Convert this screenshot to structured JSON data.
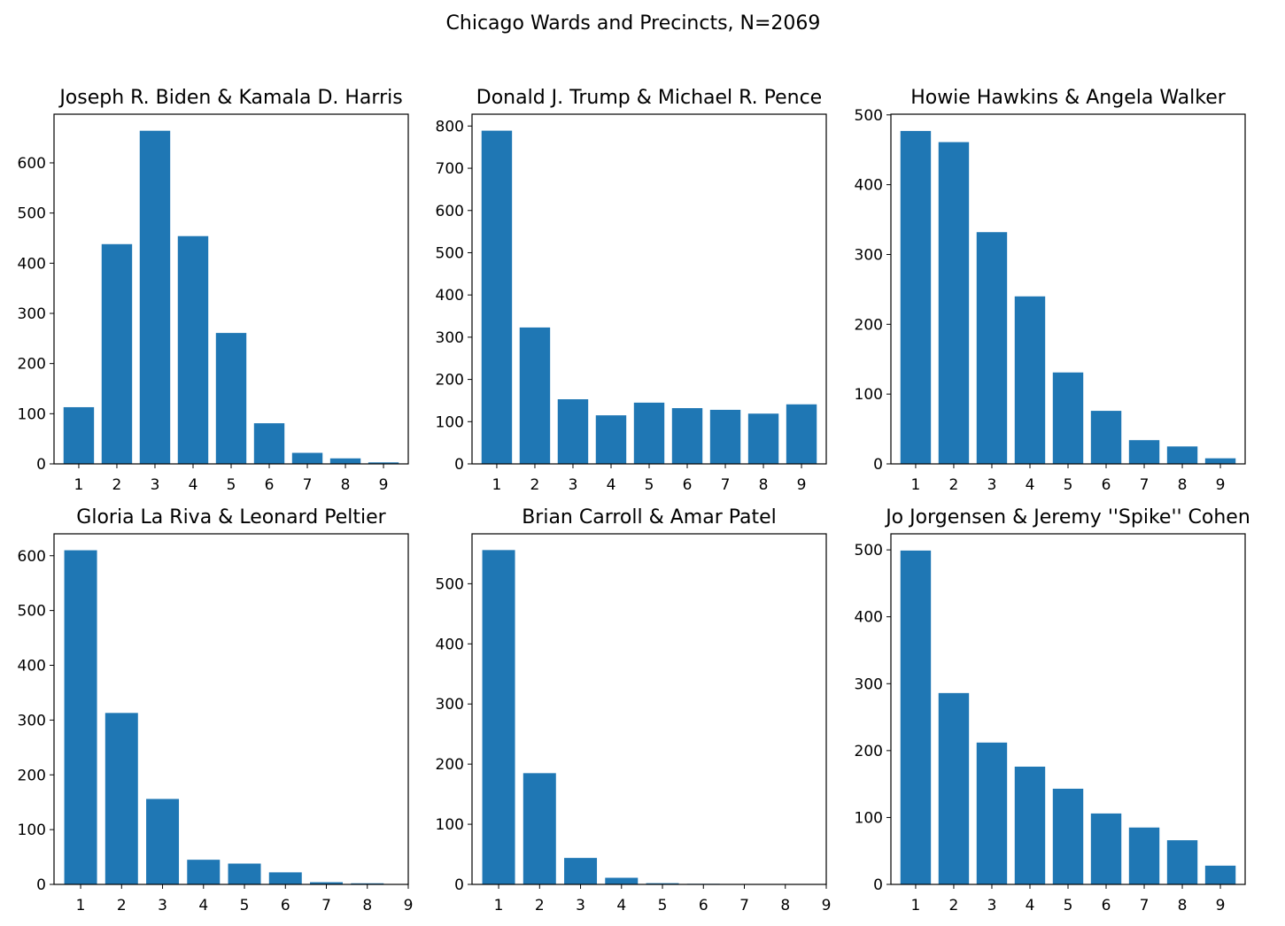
{
  "suptitle": "Chicago Wards and Precincts, N=2069",
  "bar_color": "#1f77b4",
  "chart_data": [
    {
      "type": "bar",
      "title": "Joseph R. Biden & Kamala D. Harris",
      "categories": [
        1,
        2,
        3,
        4,
        5,
        6,
        7,
        8,
        9
      ],
      "values": [
        113,
        438,
        664,
        454,
        261,
        81,
        22,
        11,
        3
      ],
      "xlim": [
        0.35,
        9.65
      ],
      "xticks": [
        1,
        2,
        3,
        4,
        5,
        6,
        7,
        8,
        9
      ],
      "ylim": [
        0,
        697
      ],
      "yticks": [
        0,
        100,
        200,
        300,
        400,
        500,
        600
      ]
    },
    {
      "type": "bar",
      "title": "Donald J. Trump & Michael R. Pence",
      "categories": [
        1,
        2,
        3,
        4,
        5,
        6,
        7,
        8,
        9
      ],
      "values": [
        789,
        323,
        153,
        115,
        145,
        132,
        128,
        119,
        141
      ],
      "xlim": [
        0.35,
        9.65
      ],
      "xticks": [
        1,
        2,
        3,
        4,
        5,
        6,
        7,
        8,
        9
      ],
      "ylim": [
        0,
        828
      ],
      "yticks": [
        0,
        100,
        200,
        300,
        400,
        500,
        600,
        700,
        800
      ]
    },
    {
      "type": "bar",
      "title": "Howie Hawkins & Angela Walker",
      "categories": [
        1,
        2,
        3,
        4,
        5,
        6,
        7,
        8,
        9
      ],
      "values": [
        477,
        461,
        332,
        240,
        131,
        76,
        34,
        25,
        8
      ],
      "xlim": [
        0.35,
        9.65
      ],
      "xticks": [
        1,
        2,
        3,
        4,
        5,
        6,
        7,
        8,
        9
      ],
      "ylim": [
        0,
        501
      ],
      "yticks": [
        0,
        100,
        200,
        300,
        400,
        500
      ]
    },
    {
      "type": "bar",
      "title": "Gloria La Riva & Leonard Peltier",
      "categories": [
        1,
        2,
        3,
        4,
        5,
        6,
        7,
        8
      ],
      "values": [
        610,
        313,
        156,
        45,
        38,
        22,
        4,
        2
      ],
      "xlim": [
        0.35,
        9.0
      ],
      "xticks": [
        1,
        2,
        3,
        4,
        5,
        6,
        7,
        8,
        9
      ],
      "ylim": [
        0,
        640
      ],
      "yticks": [
        0,
        100,
        200,
        300,
        400,
        500,
        600
      ]
    },
    {
      "type": "bar",
      "title": "Brian Carroll & Amar Patel",
      "categories": [
        1,
        2,
        3,
        4,
        5,
        6,
        7,
        8
      ],
      "values": [
        556,
        185,
        44,
        11,
        2,
        1,
        0,
        0
      ],
      "xlim": [
        0.35,
        9.0
      ],
      "xticks": [
        1,
        2,
        3,
        4,
        5,
        6,
        7,
        8,
        9
      ],
      "ylim": [
        0,
        583
      ],
      "yticks": [
        0,
        100,
        200,
        300,
        400,
        500
      ]
    },
    {
      "type": "bar",
      "title": "Jo Jorgensen & Jeremy ''Spike'' Cohen",
      "categories": [
        1,
        2,
        3,
        4,
        5,
        6,
        7,
        8,
        9
      ],
      "values": [
        499,
        286,
        212,
        176,
        143,
        106,
        85,
        66,
        28
      ],
      "xlim": [
        0.35,
        9.65
      ],
      "xticks": [
        1,
        2,
        3,
        4,
        5,
        6,
        7,
        8,
        9
      ],
      "ylim": [
        0,
        524
      ],
      "yticks": [
        0,
        100,
        200,
        300,
        400,
        500
      ]
    }
  ]
}
